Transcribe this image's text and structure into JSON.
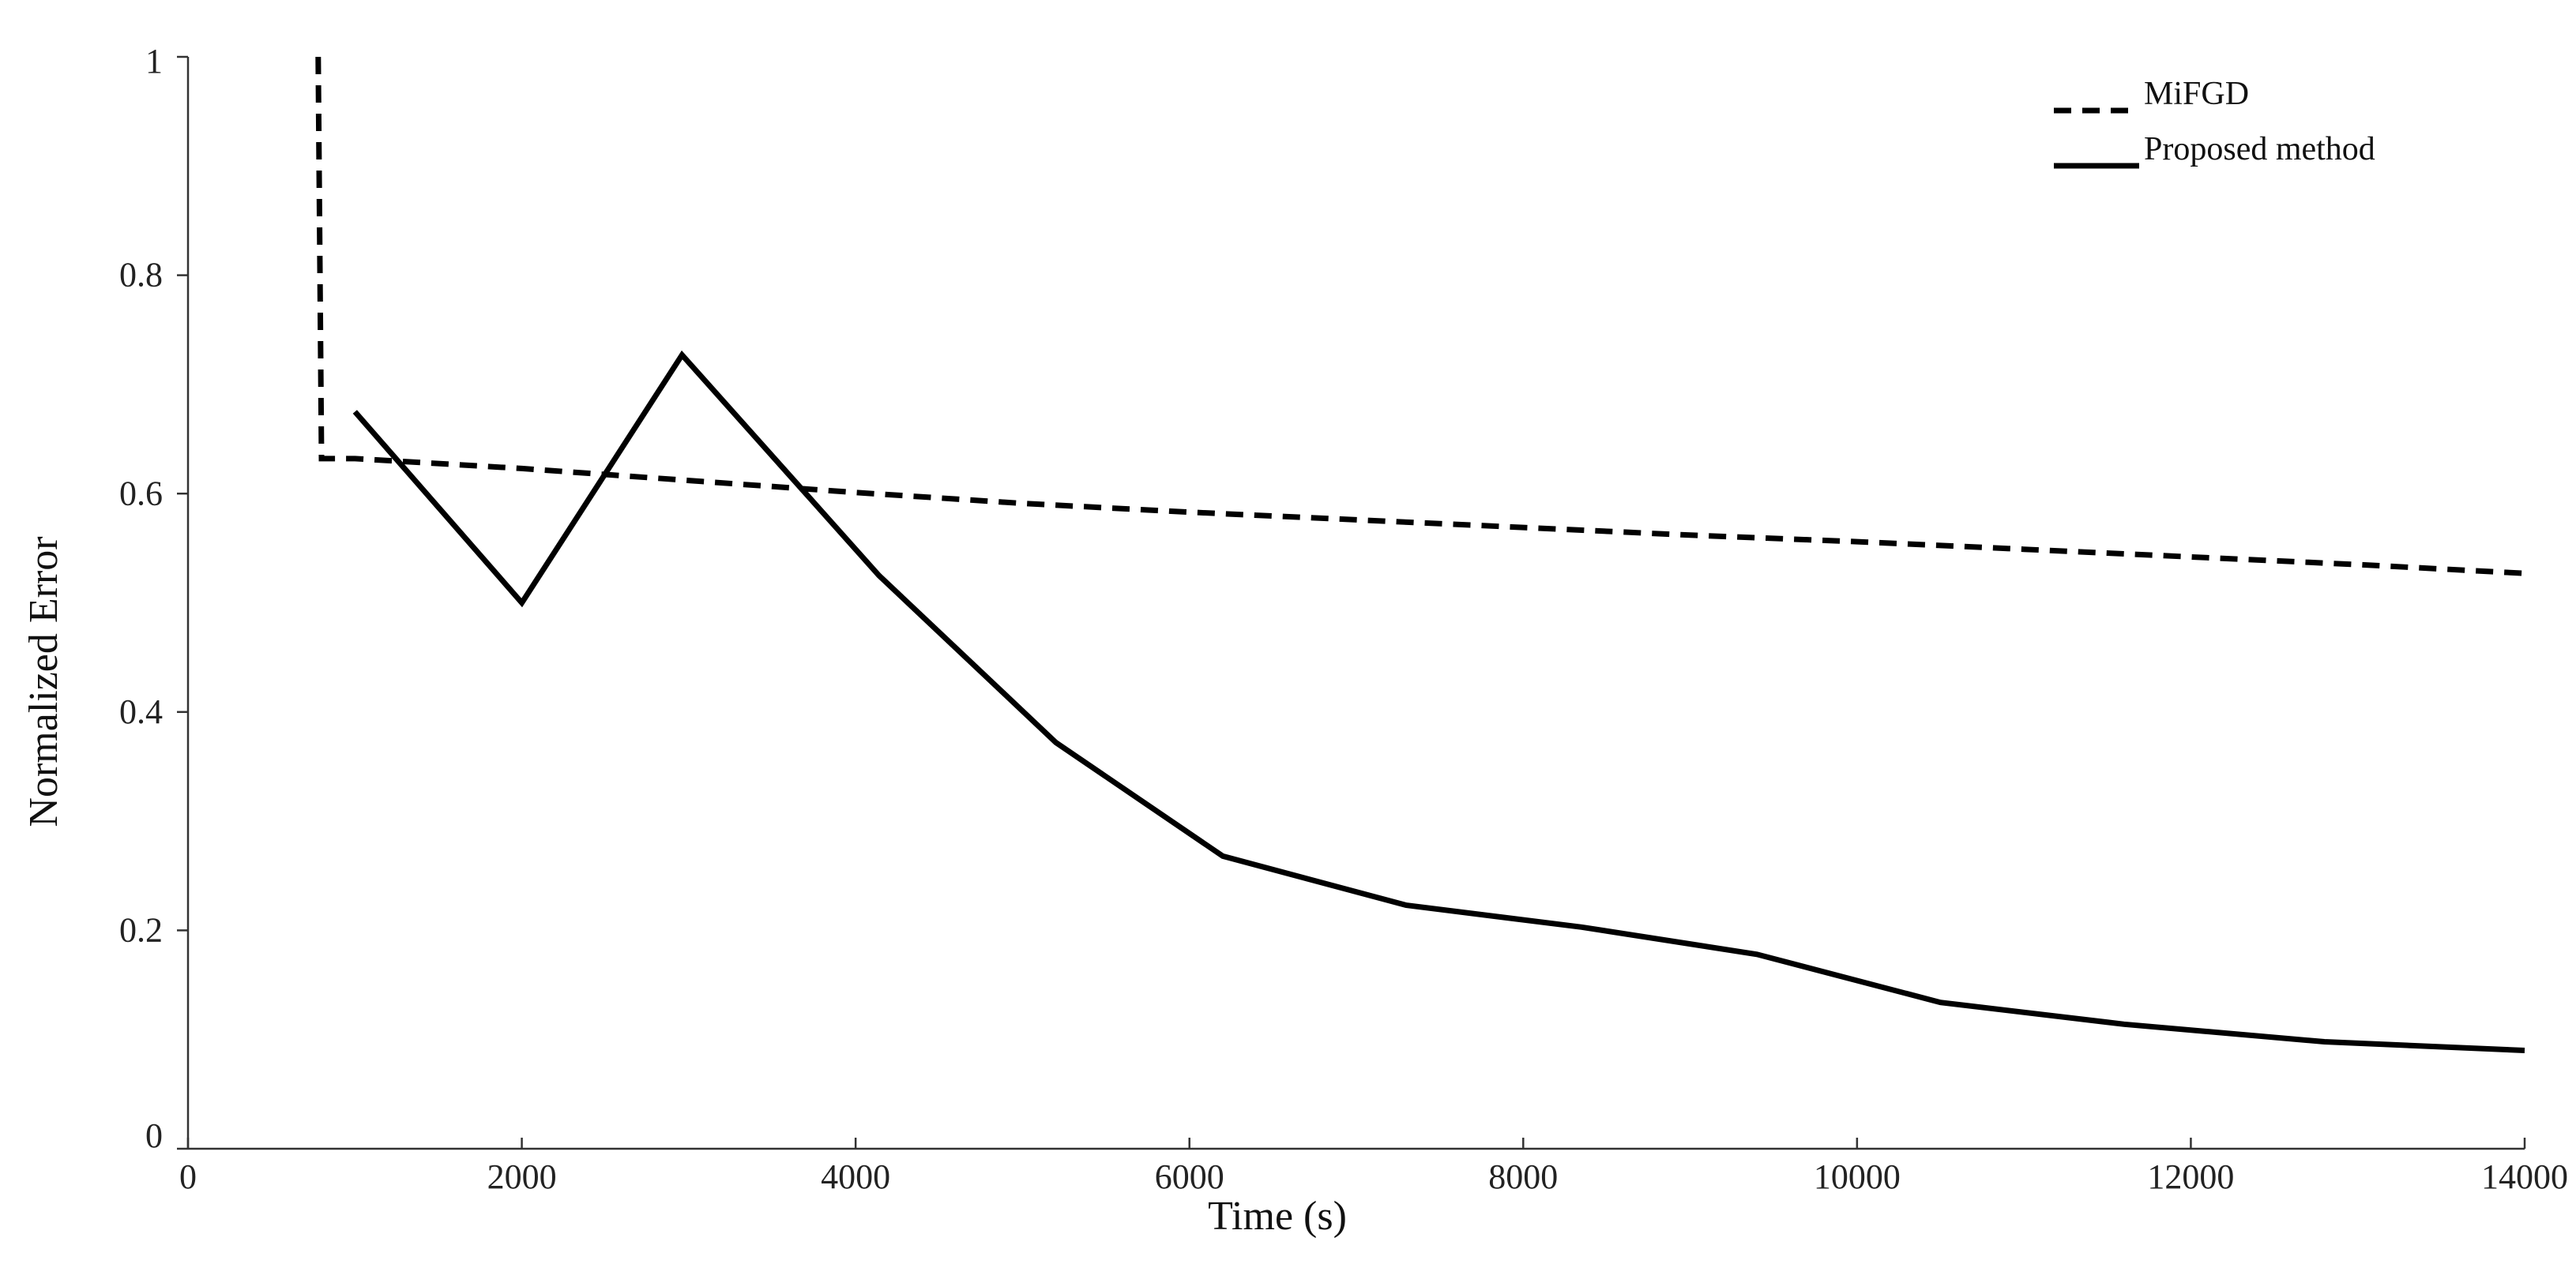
{
  "chart_data": {
    "type": "line",
    "title": "",
    "xlabel": "Time (s)",
    "ylabel": "Normalized Error",
    "xlim": [
      0,
      14000
    ],
    "ylim": [
      0,
      1
    ],
    "x_ticks": [
      0,
      2000,
      4000,
      6000,
      8000,
      10000,
      12000,
      14000
    ],
    "y_ticks": [
      0,
      0.2,
      0.4,
      0.6,
      0.8,
      1
    ],
    "x_tick_labels": [
      "0",
      "2000",
      "4000",
      "6000",
      "8000",
      "10000",
      "12000",
      "14000"
    ],
    "y_tick_labels": [
      "0",
      "0.2",
      "0.4",
      "0.6",
      "0.8",
      "1"
    ],
    "grid": false,
    "legend_position": "top-right",
    "series": [
      {
        "name": "MiFGD",
        "style": "dashed",
        "color": "#000000",
        "x": [
          780,
          800,
          1000,
          2000,
          3000,
          4000,
          5000,
          6000,
          7000,
          8000,
          9000,
          10000,
          11000,
          12000,
          13000,
          14000
        ],
        "y": [
          1.0,
          0.632,
          0.632,
          0.623,
          0.612,
          0.601,
          0.591,
          0.583,
          0.576,
          0.569,
          0.562,
          0.556,
          0.549,
          0.542,
          0.535,
          0.527
        ]
      },
      {
        "name": "Proposed method",
        "style": "solid",
        "color": "#000000",
        "x": [
          1000,
          2000,
          2960,
          4140,
          5200,
          6200,
          7300,
          8350,
          9400,
          10500,
          11600,
          12800,
          14000
        ],
        "y": [
          0.675,
          0.5,
          0.727,
          0.525,
          0.372,
          0.268,
          0.223,
          0.203,
          0.178,
          0.134,
          0.114,
          0.098,
          0.09
        ]
      }
    ]
  }
}
